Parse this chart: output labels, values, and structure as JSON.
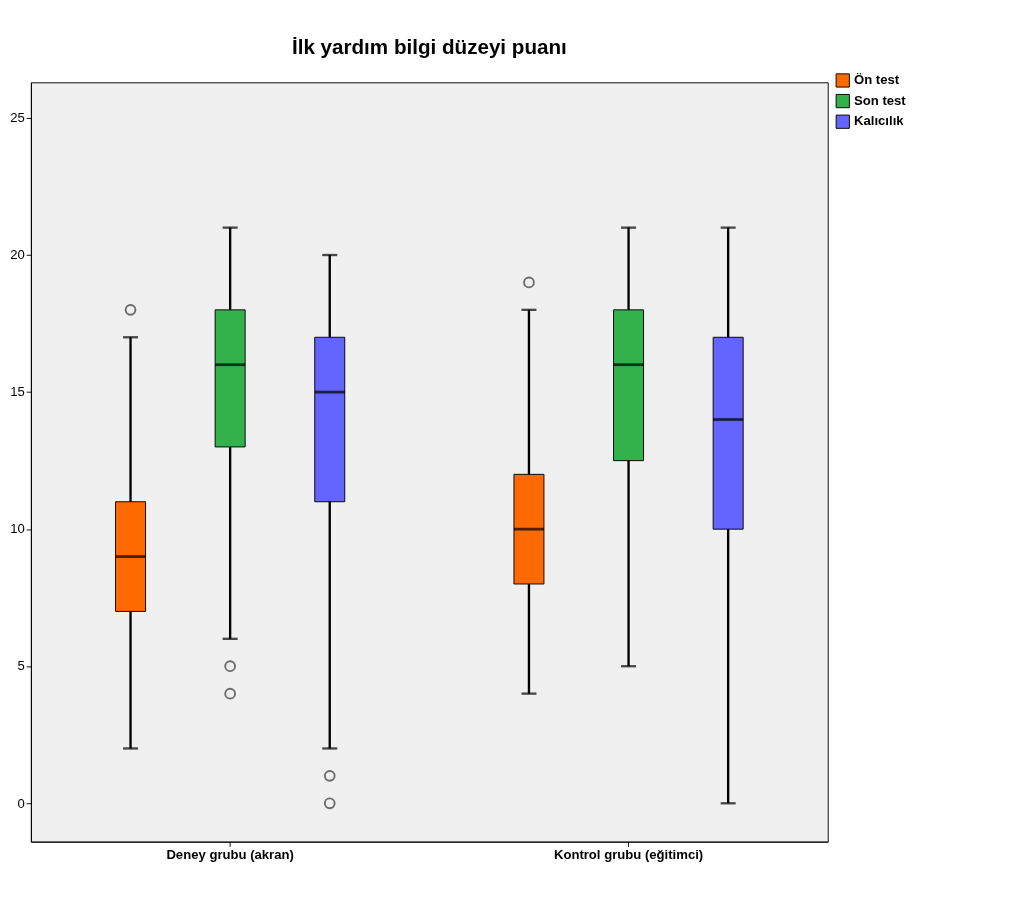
{
  "chart_data": {
    "type": "box",
    "title": "İlk yardım bilgi düzeyi puanı",
    "categories": [
      "Deney grubu (akran)",
      "Kontrol grubu (eğitimci)"
    ],
    "series": [
      {
        "name": "Ön test",
        "color": "#ff6a00",
        "boxes": [
          {
            "low": 2,
            "q1": 7,
            "median": 9,
            "q3": 11,
            "high": 17,
            "outliers": [
              18
            ]
          },
          {
            "low": 4,
            "q1": 8,
            "median": 10,
            "q3": 12,
            "high": 18,
            "outliers": [
              19
            ]
          }
        ]
      },
      {
        "name": "Son test",
        "color": "#33b24b",
        "boxes": [
          {
            "low": 6,
            "q1": 13,
            "median": 16,
            "q3": 18,
            "high": 21,
            "outliers": [
              5,
              4
            ]
          },
          {
            "low": 5,
            "q1": 12.5,
            "median": 16,
            "q3": 18,
            "high": 21
          }
        ]
      },
      {
        "name": "Kalıcılık",
        "color": "#6464ff",
        "boxes": [
          {
            "low": 2,
            "q1": 11,
            "median": 15,
            "q3": 17,
            "high": 20,
            "outliers": [
              1,
              0
            ]
          },
          {
            "low": 0,
            "q1": 10,
            "median": 14,
            "q3": 17,
            "high": 21
          }
        ]
      }
    ],
    "ylim": [
      -1.4,
      26.3
    ],
    "yticks": [
      0,
      5,
      10,
      15,
      20,
      25
    ],
    "grid": false,
    "legend": "top right"
  }
}
